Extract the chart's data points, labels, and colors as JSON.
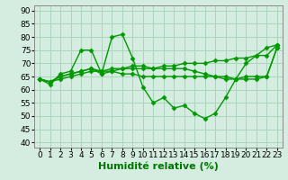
{
  "bg_color": "#d4ede0",
  "grid_color": "#aad4bb",
  "line_color": "#009900",
  "line_width": 1.0,
  "marker": "D",
  "marker_size": 2.5,
  "xlabel": "Humidité relative (%)",
  "xlabel_fontsize": 8,
  "xlabel_color": "#007700",
  "ytick_labels": [
    "40",
    "45",
    "50",
    "55",
    "60",
    "65",
    "70",
    "75",
    "80",
    "85",
    "90"
  ],
  "yticks": [
    40,
    45,
    50,
    55,
    60,
    65,
    70,
    75,
    80,
    85,
    90
  ],
  "ylim": [
    38,
    92
  ],
  "xlim": [
    -0.5,
    23.5
  ],
  "xtick_labels": [
    "0",
    "1",
    "2",
    "3",
    "4",
    "5",
    "6",
    "7",
    "8",
    "9",
    "10",
    "11",
    "12",
    "13",
    "14",
    "15",
    "16",
    "17",
    "18",
    "19",
    "20",
    "21",
    "22",
    "23"
  ],
  "tick_fontsize": 6.5,
  "series": [
    [
      64,
      62,
      66,
      67,
      75,
      75,
      66,
      80,
      81,
      72,
      61,
      55,
      57,
      53,
      54,
      51,
      49,
      51,
      57,
      64,
      70,
      73,
      76,
      77
    ],
    [
      64,
      63,
      65,
      66,
      67,
      68,
      66,
      67,
      66,
      66,
      65,
      65,
      65,
      65,
      65,
      65,
      65,
      65,
      65,
      64,
      65,
      65,
      65,
      76
    ],
    [
      64,
      63,
      64,
      65,
      66,
      67,
      67,
      67,
      68,
      68,
      68,
      68,
      69,
      69,
      70,
      70,
      70,
      71,
      71,
      72,
      72,
      73,
      73,
      77
    ],
    [
      64,
      63,
      65,
      66,
      67,
      68,
      67,
      68,
      68,
      69,
      69,
      68,
      68,
      68,
      68,
      67,
      66,
      65,
      64,
      64,
      64,
      64,
      65,
      76
    ]
  ]
}
